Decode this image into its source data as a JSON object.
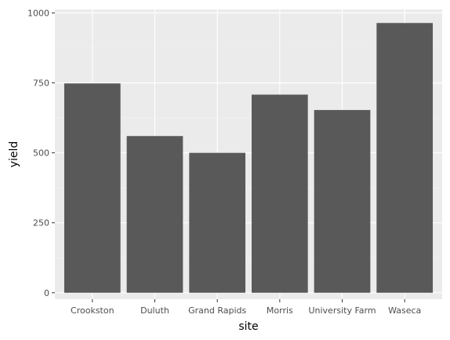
{
  "colors": {
    "panel": "#ebebeb",
    "grid_major": "#ffffff",
    "grid_minor": "#f4f4f4",
    "bar": "#595959",
    "tick": "#333333"
  },
  "chart_data": {
    "type": "bar",
    "title": "",
    "xlabel": "site",
    "ylabel": "yield",
    "categories": [
      "Crookston",
      "Duluth",
      "Grand Rapids",
      "Morris",
      "University Farm",
      "Waseca"
    ],
    "values": [
      748,
      560,
      500,
      708,
      653,
      964
    ],
    "ylim": [
      0,
      1000
    ],
    "yticks": [
      0,
      250,
      500,
      750,
      1000
    ],
    "grid": true,
    "legend": "none"
  }
}
